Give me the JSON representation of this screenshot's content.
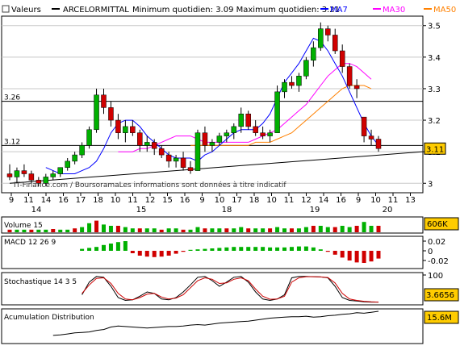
{
  "header": {
    "valeurs_label": "Valeurs",
    "symbol": "ARCELORMITTAL",
    "stats": "Minimum quotidien: 3.09 Maximum quotidien: 3.21",
    "ma7_label": "MA7",
    "ma30_label": "MA30",
    "ma50_label": "MA50"
  },
  "colors": {
    "candle_up": "#00b000",
    "candle_down": "#d00000",
    "ma7": "#0000ff",
    "ma30": "#ff00ff",
    "ma50": "#ff8000",
    "badge": "#ffcc00",
    "grid": "#c8c8c8",
    "panel_bg": "#ffffff"
  },
  "chart_data": [
    {
      "type": "candlestick",
      "ylim": [
        2.97,
        3.53
      ],
      "yticks": [
        "3.5",
        "3.4",
        "3.3",
        "3.2",
        "3.1",
        "3"
      ],
      "x_ticks_top": [
        "9",
        "11",
        "14",
        "16",
        "17",
        "18",
        "10",
        "11",
        "12",
        "15",
        "16",
        "9",
        "10",
        "17",
        "18",
        "10",
        "11",
        "12",
        "14",
        "16",
        "9",
        "10",
        "11",
        "13"
      ],
      "x_ticks_bottom": [
        "14",
        "15",
        "18",
        "19",
        "20"
      ],
      "h_lines": [
        {
          "value": 3.26,
          "label": "3.26"
        },
        {
          "value": 3.12,
          "label": "3.12"
        }
      ],
      "trendline": {
        "from": 3.0,
        "to": 3.1
      },
      "last_price": "3.11",
      "watermark": "IT-Finance.com / BoursoramaLes informations sont données à titre indicatif",
      "candles": [
        [
          3.03,
          3.06,
          3.01,
          3.02
        ],
        [
          3.02,
          3.05,
          3.0,
          3.04
        ],
        [
          3.04,
          3.06,
          3.02,
          3.03
        ],
        [
          3.03,
          3.04,
          3.0,
          3.01
        ],
        [
          3.01,
          3.02,
          2.99,
          3.0
        ],
        [
          3.0,
          3.03,
          2.99,
          3.02
        ],
        [
          3.02,
          3.04,
          3.01,
          3.03
        ],
        [
          3.03,
          3.05,
          3.02,
          3.05
        ],
        [
          3.05,
          3.08,
          3.04,
          3.07
        ],
        [
          3.07,
          3.1,
          3.06,
          3.09
        ],
        [
          3.09,
          3.13,
          3.08,
          3.12
        ],
        [
          3.12,
          3.18,
          3.11,
          3.17
        ],
        [
          3.17,
          3.3,
          3.16,
          3.28
        ],
        [
          3.28,
          3.3,
          3.22,
          3.24
        ],
        [
          3.24,
          3.26,
          3.18,
          3.2
        ],
        [
          3.2,
          3.22,
          3.14,
          3.16
        ],
        [
          3.16,
          3.2,
          3.13,
          3.18
        ],
        [
          3.18,
          3.2,
          3.15,
          3.16
        ],
        [
          3.16,
          3.17,
          3.1,
          3.12
        ],
        [
          3.12,
          3.15,
          3.1,
          3.13
        ],
        [
          3.13,
          3.14,
          3.09,
          3.11
        ],
        [
          3.11,
          3.12,
          3.08,
          3.09
        ],
        [
          3.09,
          3.1,
          3.05,
          3.07
        ],
        [
          3.07,
          3.09,
          3.05,
          3.08
        ],
        [
          3.08,
          3.1,
          3.04,
          3.05
        ],
        [
          3.05,
          3.07,
          3.03,
          3.04
        ],
        [
          3.04,
          3.17,
          3.04,
          3.16
        ],
        [
          3.16,
          3.18,
          3.1,
          3.12
        ],
        [
          3.12,
          3.14,
          3.1,
          3.13
        ],
        [
          3.13,
          3.16,
          3.12,
          3.15
        ],
        [
          3.15,
          3.17,
          3.13,
          3.16
        ],
        [
          3.16,
          3.19,
          3.14,
          3.18
        ],
        [
          3.18,
          3.24,
          3.16,
          3.22
        ],
        [
          3.22,
          3.23,
          3.17,
          3.18
        ],
        [
          3.18,
          3.2,
          3.15,
          3.16
        ],
        [
          3.16,
          3.18,
          3.14,
          3.15
        ],
        [
          3.15,
          3.17,
          3.13,
          3.16
        ],
        [
          3.16,
          3.31,
          3.16,
          3.29
        ],
        [
          3.29,
          3.33,
          3.27,
          3.32
        ],
        [
          3.32,
          3.34,
          3.3,
          3.31
        ],
        [
          3.31,
          3.35,
          3.29,
          3.34
        ],
        [
          3.34,
          3.4,
          3.33,
          3.39
        ],
        [
          3.39,
          3.45,
          3.37,
          3.43
        ],
        [
          3.43,
          3.51,
          3.42,
          3.49
        ],
        [
          3.49,
          3.5,
          3.45,
          3.47
        ],
        [
          3.47,
          3.49,
          3.41,
          3.42
        ],
        [
          3.42,
          3.44,
          3.35,
          3.37
        ],
        [
          3.37,
          3.38,
          3.3,
          3.31
        ],
        [
          3.31,
          3.33,
          3.27,
          3.3
        ],
        [
          3.21,
          3.21,
          3.13,
          3.15
        ],
        [
          3.15,
          3.17,
          3.12,
          3.14
        ],
        [
          3.14,
          3.15,
          3.1,
          3.11
        ]
      ],
      "ma7": [
        3.05,
        3.04,
        3.03,
        3.03,
        3.03,
        3.04,
        3.05,
        3.07,
        3.11,
        3.16,
        3.19,
        3.2,
        3.2,
        3.18,
        3.15,
        3.13,
        3.11,
        3.09,
        3.08,
        3.08,
        3.08,
        3.07,
        3.09,
        3.1,
        3.12,
        3.14,
        3.16,
        3.17,
        3.17,
        3.17,
        3.19,
        3.22,
        3.27,
        3.32,
        3.35,
        3.38,
        3.42,
        3.46,
        3.45,
        3.42,
        3.38,
        3.34,
        3.29,
        3.24,
        3.19,
        3.15,
        3.12
      ],
      "ma30": [
        3.1,
        3.1,
        3.1,
        3.11,
        3.11,
        3.12,
        3.13,
        3.14,
        3.15,
        3.15,
        3.15,
        3.14,
        3.13,
        3.13,
        3.13,
        3.13,
        3.13,
        3.13,
        3.13,
        3.14,
        3.15,
        3.16,
        3.17,
        3.19,
        3.21,
        3.23,
        3.25,
        3.28,
        3.31,
        3.34,
        3.36,
        3.38,
        3.38,
        3.37,
        3.35,
        3.33
      ],
      "ma50": [
        3.12,
        3.12,
        3.12,
        3.12,
        3.12,
        3.12,
        3.12,
        3.12,
        3.12,
        3.13,
        3.13,
        3.13,
        3.14,
        3.15,
        3.16,
        3.18,
        3.2,
        3.22,
        3.24,
        3.26,
        3.28,
        3.3,
        3.31,
        3.31,
        3.31,
        3.3
      ]
    },
    {
      "type": "bar",
      "title": "Volume 15",
      "last_value": "606K",
      "values": [
        0.2,
        0.2,
        0.2,
        0.2,
        0.2,
        0.2,
        0.25,
        0.2,
        0.2,
        0.3,
        0.4,
        0.7,
        0.9,
        0.6,
        0.5,
        0.5,
        0.4,
        0.3,
        0.3,
        0.3,
        0.3,
        0.2,
        0.3,
        0.3,
        0.2,
        0.2,
        0.4,
        0.3,
        0.3,
        0.3,
        0.3,
        0.3,
        0.4,
        0.3,
        0.3,
        0.3,
        0.3,
        0.4,
        0.3,
        0.3,
        0.3,
        0.4,
        0.5,
        0.5,
        0.4,
        0.4,
        0.5,
        0.4,
        0.5,
        0.8,
        0.5,
        0.5
      ]
    },
    {
      "type": "bar",
      "title": "MACD 12 26 9",
      "yticks": [
        "0.02",
        "0",
        "-0.02"
      ],
      "values": [
        0.004,
        0.006,
        0.008,
        0.012,
        0.015,
        0.018,
        0.02,
        -0.005,
        -0.01,
        -0.012,
        -0.013,
        -0.012,
        -0.01,
        -0.006,
        -0.002,
        0.002,
        0.003,
        0.004,
        0.005,
        0.006,
        0.007,
        0.008,
        0.008,
        0.008,
        0.008,
        0.008,
        0.007,
        0.007,
        0.007,
        0.008,
        0.009,
        0.009,
        0.007,
        0.003,
        -0.002,
        -0.008,
        -0.014,
        -0.02,
        -0.024,
        -0.025,
        -0.022,
        -0.016
      ]
    },
    {
      "type": "line",
      "title": "Stochastique 14 3 5",
      "yticks": [
        "100"
      ],
      "last_value": "3.6656",
      "series": [
        {
          "values": [
            30,
            75,
            95,
            92,
            60,
            20,
            10,
            12,
            25,
            40,
            35,
            15,
            12,
            20,
            40,
            65,
            92,
            95,
            80,
            60,
            75,
            92,
            95,
            75,
            40,
            15,
            10,
            15,
            30,
            90,
            95,
            95,
            94,
            93,
            90,
            60,
            20,
            10,
            8,
            5,
            4,
            4
          ]
        },
        {
          "values": [
            35,
            65,
            88,
            90,
            70,
            35,
            15,
            12,
            20,
            32,
            35,
            22,
            15,
            18,
            30,
            55,
            80,
            90,
            85,
            70,
            72,
            85,
            90,
            80,
            50,
            25,
            14,
            15,
            25,
            75,
            90,
            94,
            94,
            93,
            91,
            72,
            35,
            15,
            10,
            7,
            5,
            4
          ]
        }
      ]
    },
    {
      "type": "line",
      "title": "Acumulation Distribution",
      "last_value": "15.6M",
      "values": [
        1.0,
        1.1,
        1.3,
        1.5,
        1.6,
        1.7,
        2.0,
        2.2,
        2.7,
        2.9,
        2.8,
        2.7,
        2.6,
        2.5,
        2.6,
        2.7,
        2.8,
        2.8,
        2.9,
        3.1,
        3.2,
        3.1,
        3.3,
        3.5,
        3.6,
        3.7,
        3.8,
        3.9,
        4.1,
        4.3,
        4.5,
        4.6,
        4.7,
        4.8,
        4.8,
        4.9,
        4.7,
        4.8,
        5.0,
        5.1,
        5.3,
        5.4,
        5.6,
        5.5,
        5.7,
        5.9
      ]
    }
  ]
}
